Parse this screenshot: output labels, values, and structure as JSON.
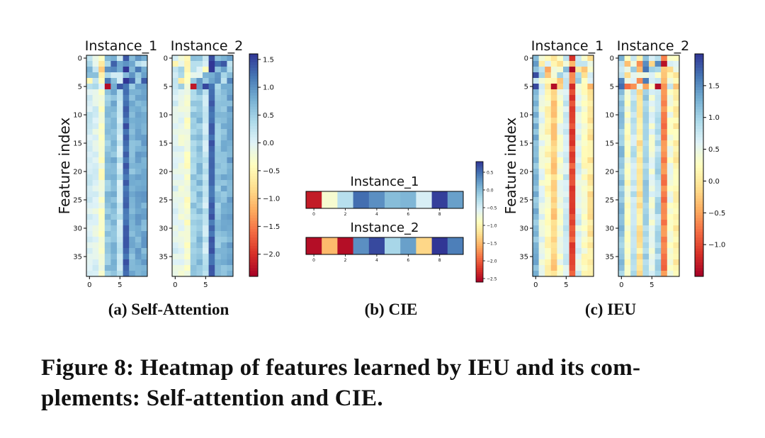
{
  "figure": {
    "caption_line1": "Figure 8: Heatmap of features learned by IEU and its com-",
    "caption_line2": "plements: Self-attention and CIE.",
    "colormap": [
      "#a50026",
      "#d73027",
      "#f46d43",
      "#fdae61",
      "#fee090",
      "#ffffbf",
      "#e0f3f8",
      "#abd9e9",
      "#74add1",
      "#4575b4",
      "#313695"
    ]
  },
  "chart_data": [
    {
      "type": "heatmap",
      "panel": "(a) Self-Attention",
      "ylabel": "Feature index",
      "instances": [
        "Instance_1",
        "Instance_2"
      ],
      "rows": 39,
      "cols": 10,
      "x_ticks": [
        0,
        5
      ],
      "y_ticks": [
        0,
        5,
        10,
        15,
        20,
        25,
        30,
        35
      ],
      "colorbar": {
        "range": [
          -2.4,
          1.6
        ],
        "ticks": [
          1.5,
          1.0,
          0.5,
          0.0,
          -0.5,
          -1.0,
          -1.5,
          -2.0
        ],
        "tick_labels": [
          "1.5",
          "1.0",
          "0.5",
          "0.0",
          "−0.5",
          "−1.0",
          "−1.5",
          "−2.0"
        ]
      },
      "column_values": [
        [
          0.1,
          0.0,
          -0.3,
          0.6,
          0.7,
          0.2,
          1.3,
          0.7,
          0.8,
          0.8
        ],
        [
          0.0,
          -0.1,
          -0.3,
          0.5,
          0.6,
          0.2,
          1.3,
          0.6,
          0.7,
          0.8
        ]
      ],
      "row5_values": [
        [
          0.3,
          0.4,
          0.0,
          -2.3,
          0.8,
          1.4,
          1.2,
          0.5,
          0.9,
          0.9
        ],
        [
          0.2,
          0.5,
          -0.2,
          -2.2,
          0.9,
          1.5,
          1.2,
          0.4,
          0.8,
          0.8
        ]
      ]
    },
    {
      "type": "heatmap",
      "panel": "(b) CIE",
      "instances": [
        "Instance_1",
        "Instance_2"
      ],
      "rows": 1,
      "cols": 10,
      "x_ticks": [
        0,
        2,
        4,
        6,
        8
      ],
      "colorbar": {
        "range": [
          -2.6,
          0.8
        ],
        "ticks": [
          0.5,
          0.0,
          -0.5,
          -1.0,
          -1.5,
          -2.0,
          -2.5
        ],
        "tick_labels": [
          "0.5",
          "0.0",
          "−0.5",
          "−1.0",
          "−1.5",
          "−2.0",
          "−2.5"
        ]
      },
      "values": [
        [
          -2.4,
          -0.8,
          -0.3,
          0.5,
          0.3,
          0.0,
          0.05,
          -0.5,
          0.75,
          0.2
        ],
        [
          -2.5,
          -1.5,
          -2.5,
          0.3,
          0.7,
          -0.2,
          0.2,
          -1.3,
          0.8,
          0.4
        ]
      ]
    },
    {
      "type": "heatmap",
      "panel": "(c) IEU",
      "ylabel": "Feature index",
      "instances": [
        "Instance_1",
        "Instance_2"
      ],
      "rows": 39,
      "cols": 10,
      "x_ticks": [
        0,
        5
      ],
      "y_ticks": [
        0,
        5,
        10,
        15,
        20,
        25,
        30,
        35
      ],
      "colorbar": {
        "range": [
          -1.5,
          2.0
        ],
        "ticks": [
          1.5,
          1.0,
          0.5,
          0.0,
          -0.5,
          -1.0
        ],
        "tick_labels": [
          "1.5",
          "1.0",
          "0.5",
          "0.0",
          "−0.5",
          "−1.0"
        ]
      },
      "column_values": [
        [
          1.2,
          0.5,
          0.2,
          -0.2,
          0.4,
          0.7,
          -1.0,
          0.6,
          0.3,
          0.0
        ],
        [
          1.1,
          0.3,
          0.8,
          0.0,
          1.0,
          0.5,
          0.9,
          -0.7,
          0.4,
          0.1
        ]
      ],
      "row5_values": [
        [
          1.9,
          0.7,
          0.0,
          -1.4,
          -0.2,
          0.8,
          -1.2,
          0.4,
          0.2,
          -0.4
        ],
        [
          1.7,
          -0.8,
          -0.6,
          0.5,
          -0.5,
          0.3,
          -1.4,
          -0.6,
          0.8,
          -0.3
        ]
      ]
    }
  ]
}
